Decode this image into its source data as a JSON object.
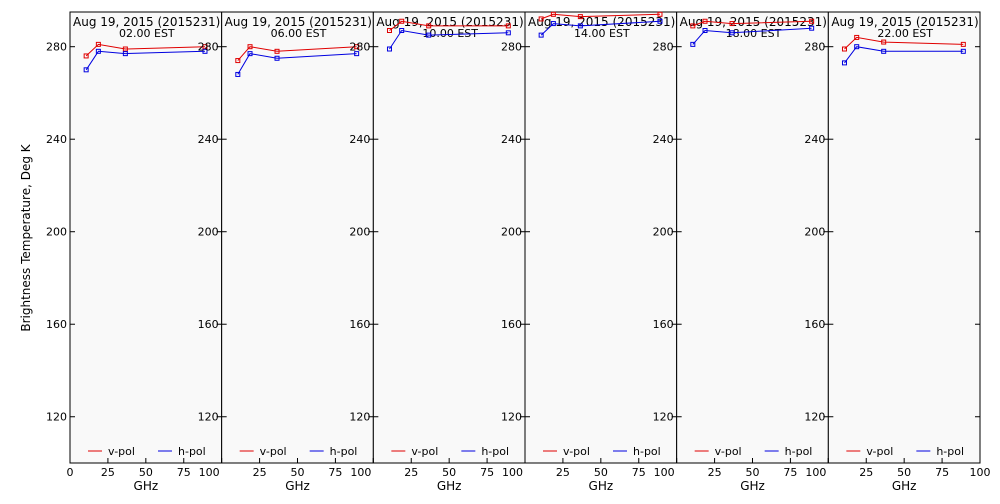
{
  "ylabel": "Brightness Temperature, Deg K",
  "xlabel": "GHz",
  "legend": [
    {
      "name": "v-pol",
      "color": "#e00000"
    },
    {
      "name": "h-pol",
      "color": "#0000e0"
    }
  ],
  "x_ticks": [
    "0",
    "25",
    "50",
    "75",
    "100"
  ],
  "y_ticks": [
    "120",
    "160",
    "200",
    "240",
    "280"
  ],
  "chart_data": [
    {
      "type": "line",
      "title": "Aug 19, 2015 (2015231)",
      "subtitle": "02.00 EST",
      "x": [
        10.65,
        18.7,
        36.5,
        89.0
      ],
      "xlim": [
        0,
        100
      ],
      "ylim": [
        100,
        295
      ],
      "grid": false,
      "legend_position": "bottom",
      "series": [
        {
          "name": "v-pol",
          "values": [
            276,
            281,
            279,
            280
          ]
        },
        {
          "name": "h-pol",
          "values": [
            270,
            278,
            277,
            278
          ]
        }
      ]
    },
    {
      "type": "line",
      "title": "Aug 19, 2015 (2015231)",
      "subtitle": "06.00 EST",
      "x": [
        10.65,
        18.7,
        36.5,
        89.0
      ],
      "xlim": [
        0,
        100
      ],
      "ylim": [
        100,
        295
      ],
      "grid": false,
      "legend_position": "bottom",
      "series": [
        {
          "name": "v-pol",
          "values": [
            274,
            280,
            278,
            280
          ]
        },
        {
          "name": "h-pol",
          "values": [
            268,
            277,
            275,
            277
          ]
        }
      ]
    },
    {
      "type": "line",
      "title": "Aug 19, 2015 (2015231)",
      "subtitle": "10.00 EST",
      "x": [
        10.65,
        18.7,
        36.5,
        89.0
      ],
      "xlim": [
        0,
        100
      ],
      "ylim": [
        100,
        295
      ],
      "grid": false,
      "legend_position": "bottom",
      "series": [
        {
          "name": "v-pol",
          "values": [
            287,
            291,
            289,
            289
          ]
        },
        {
          "name": "h-pol",
          "values": [
            279,
            287,
            285,
            286
          ]
        }
      ]
    },
    {
      "type": "line",
      "title": "Aug 19, 2015 (2015231)",
      "subtitle": "14.00 EST",
      "x": [
        10.65,
        18.7,
        36.5,
        89.0
      ],
      "xlim": [
        0,
        100
      ],
      "ylim": [
        100,
        295
      ],
      "grid": false,
      "legend_position": "bottom",
      "series": [
        {
          "name": "v-pol",
          "values": [
            292,
            294,
            293,
            294
          ]
        },
        {
          "name": "h-pol",
          "values": [
            285,
            290,
            289,
            291
          ]
        }
      ]
    },
    {
      "type": "line",
      "title": "Aug 19, 2015 (2015231)",
      "subtitle": "18.00 EST",
      "x": [
        10.65,
        18.7,
        36.5,
        89.0
      ],
      "xlim": [
        0,
        100
      ],
      "ylim": [
        100,
        295
      ],
      "grid": false,
      "legend_position": "bottom",
      "series": [
        {
          "name": "v-pol",
          "values": [
            289,
            291,
            290,
            291
          ]
        },
        {
          "name": "h-pol",
          "values": [
            281,
            287,
            286,
            288
          ]
        }
      ]
    },
    {
      "type": "line",
      "title": "Aug 19, 2015 (2015231)",
      "subtitle": "22.00 EST",
      "x": [
        10.65,
        18.7,
        36.5,
        89.0
      ],
      "xlim": [
        0,
        100
      ],
      "ylim": [
        100,
        295
      ],
      "grid": false,
      "legend_position": "bottom",
      "series": [
        {
          "name": "v-pol",
          "values": [
            279,
            284,
            282,
            281
          ]
        },
        {
          "name": "h-pol",
          "values": [
            273,
            280,
            278,
            278
          ]
        }
      ]
    }
  ]
}
